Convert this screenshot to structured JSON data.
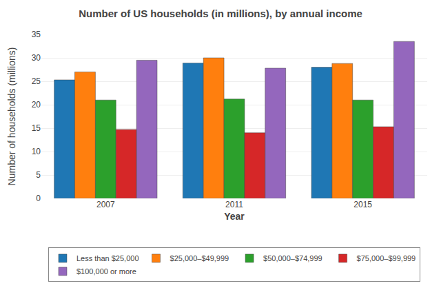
{
  "chart_data": {
    "type": "bar",
    "title": "Number of US households (in millions), by annual income",
    "xlabel": "Year",
    "ylabel": "Number of households (millions)",
    "categories": [
      "2007",
      "2011",
      "2015"
    ],
    "series": [
      {
        "name": "Less than $25,000",
        "values": [
          25.3,
          28.9,
          28.0
        ]
      },
      {
        "name": "$25,000–$49,999",
        "values": [
          27.0,
          30.0,
          28.8
        ]
      },
      {
        "name": "$50,000–$74,999",
        "values": [
          21.0,
          21.2,
          21.0
        ]
      },
      {
        "name": "$75,000–$99,999",
        "values": [
          14.7,
          14.0,
          15.3
        ]
      },
      {
        "name": "$100,000 or more",
        "values": [
          29.5,
          27.8,
          33.5
        ]
      }
    ],
    "ylim": [
      0,
      35
    ],
    "yticks": [
      0,
      5,
      10,
      15,
      20,
      25,
      30,
      35
    ],
    "grid": true,
    "legend": "bottom"
  }
}
